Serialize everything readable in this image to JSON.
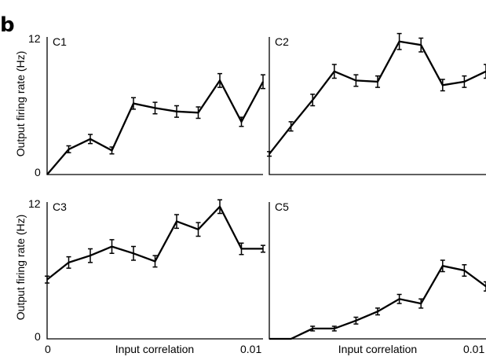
{
  "figure_label": "b",
  "shared_labels": {
    "ylabel": "Output firing rate (Hz)",
    "xlabel": "Input correlation",
    "y_tick_top": "12",
    "y_tick_bottom": "0",
    "x_tick_left": "0",
    "x_tick_right": "0.01"
  },
  "chart_data": [
    {
      "type": "line",
      "title": "C1",
      "ylim": [
        0,
        12
      ],
      "xlim": [
        0,
        0.01
      ],
      "x": [
        0,
        0.001,
        0.002,
        0.003,
        0.004,
        0.005,
        0.006,
        0.007,
        0.008,
        0.009,
        0.01
      ],
      "values": [
        0,
        2.2,
        3.1,
        2.1,
        6.2,
        5.8,
        5.5,
        5.4,
        8.2,
        4.6,
        8.1
      ],
      "errors": [
        0,
        0.3,
        0.4,
        0.3,
        0.5,
        0.5,
        0.5,
        0.5,
        0.6,
        0.4,
        0.6
      ]
    },
    {
      "type": "line",
      "title": "C2",
      "ylim": [
        0,
        12
      ],
      "xlim": [
        0,
        0.01
      ],
      "x": [
        0,
        0.001,
        0.002,
        0.003,
        0.004,
        0.005,
        0.006,
        0.007,
        0.008,
        0.009,
        0.01
      ],
      "values": [
        1.8,
        4.2,
        6.5,
        9.0,
        8.2,
        8.1,
        11.6,
        11.3,
        7.8,
        8.1,
        9.0
      ],
      "errors": [
        0.2,
        0.4,
        0.5,
        0.6,
        0.5,
        0.5,
        0.7,
        0.6,
        0.5,
        0.5,
        0.6
      ]
    },
    {
      "type": "line",
      "title": "C3",
      "ylim": [
        0,
        12
      ],
      "xlim": [
        0,
        0.01
      ],
      "x": [
        0,
        0.001,
        0.002,
        0.003,
        0.004,
        0.005,
        0.006,
        0.007,
        0.008,
        0.009,
        0.01
      ],
      "values": [
        5.2,
        6.7,
        7.3,
        8.1,
        7.5,
        6.8,
        10.3,
        9.6,
        11.6,
        7.9,
        7.9
      ],
      "errors": [
        0.3,
        0.5,
        0.6,
        0.6,
        0.6,
        0.5,
        0.6,
        0.6,
        0.6,
        0.5,
        0.3
      ]
    },
    {
      "type": "line",
      "title": "C5",
      "ylim": [
        0,
        12
      ],
      "xlim": [
        0,
        0.01
      ],
      "x": [
        0,
        0.001,
        0.002,
        0.003,
        0.004,
        0.005,
        0.006,
        0.007,
        0.008,
        0.009,
        0.01
      ],
      "values": [
        0,
        0,
        0.9,
        0.9,
        1.6,
        2.4,
        3.5,
        3.1,
        6.4,
        6.0,
        4.6
      ],
      "errors": [
        0,
        0,
        0.2,
        0.2,
        0.3,
        0.3,
        0.4,
        0.4,
        0.5,
        0.5,
        0.4
      ]
    }
  ]
}
